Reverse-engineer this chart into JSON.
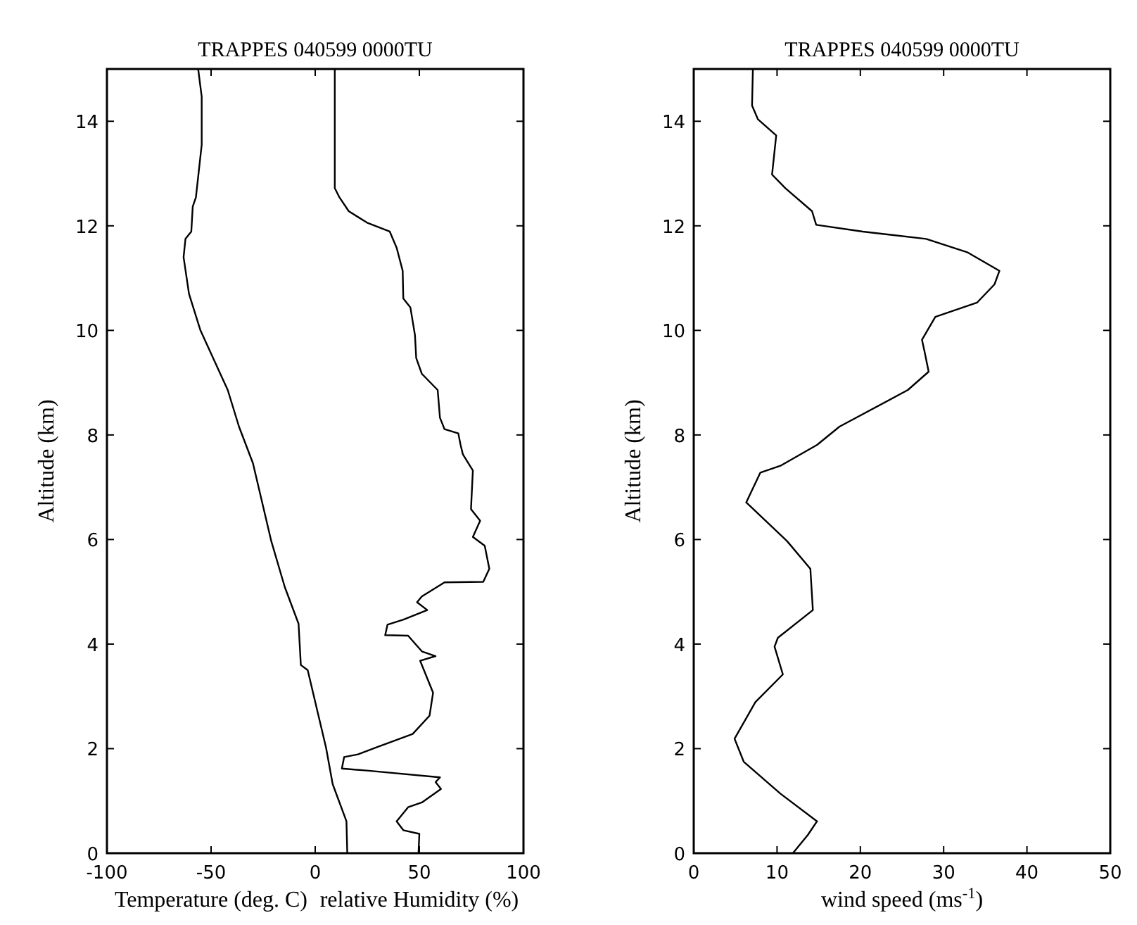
{
  "chart_data": [
    {
      "type": "line",
      "title": "TRAPPES 040599  0000TU",
      "ylabel": "Altitude (km)",
      "xlim": [
        -100,
        100
      ],
      "xticks": [
        -100,
        -50,
        0,
        50,
        100
      ],
      "ylim": [
        0,
        15
      ],
      "yticks": [
        0,
        2,
        4,
        6,
        8,
        10,
        12,
        14
      ],
      "series": [
        {
          "name": "Temperature (deg. C)",
          "color": "#000000",
          "x": [
            -56.2,
            -54.5,
            -54.5,
            -57.3,
            -58.8,
            -59.5,
            -62.3,
            -63.2,
            -60.6,
            -55.1,
            -42,
            -36.6,
            -29.9,
            -21.1,
            -14.6,
            -8,
            -6.9,
            -3.6,
            5.2,
            8.4,
            15,
            15.4
          ],
          "values": [
            15,
            14.47,
            13.55,
            12.54,
            12.37,
            11.89,
            11.75,
            11.4,
            10.7,
            10,
            8.86,
            8.16,
            7.46,
            5.97,
            5.09,
            4.39,
            3.6,
            3.5,
            2.02,
            1.32,
            0.61,
            0
          ]
        },
        {
          "name": "relative Humidity (%)",
          "color": "#000000",
          "x": [
            9.4,
            9.4,
            11.7,
            16.1,
            24.9,
            35.8,
            39.1,
            42,
            42.3,
            45.7,
            47.9,
            48.5,
            51.2,
            58.8,
            59.9,
            62.1,
            68.7,
            69.8,
            70.9,
            75.7,
            74.8,
            79.2,
            75.7,
            81.4,
            83.6,
            80.7,
            62.1,
            51.2,
            48.9,
            53.8,
            42.4,
            34.7,
            33.6,
            44.6,
            51.2,
            57.8,
            50.4,
            56.6,
            54.9,
            46.8,
            29.2,
            20.5,
            13.9,
            12.8,
            24.9,
            59.9,
            57.8,
            60.4,
            51.2,
            44.6,
            39.1,
            42.3,
            50,
            49.6
          ],
          "values": [
            15,
            12.72,
            12.54,
            12.28,
            12.06,
            11.89,
            11.58,
            11.14,
            10.61,
            10.44,
            9.91,
            9.47,
            9.17,
            8.86,
            8.33,
            8.11,
            8.03,
            7.81,
            7.63,
            7.32,
            6.58,
            6.36,
            6.05,
            5.88,
            5.44,
            5.19,
            5.18,
            4.91,
            4.8,
            4.65,
            4.47,
            4.37,
            4.17,
            4.16,
            3.86,
            3.77,
            3.68,
            3.07,
            2.63,
            2.28,
            2.02,
            1.89,
            1.84,
            1.62,
            1.58,
            1.45,
            1.36,
            1.23,
            0.97,
            0.88,
            0.61,
            0.44,
            0.37,
            0
          ]
        }
      ]
    },
    {
      "type": "line",
      "title": "TRAPPES 040599  0000TU",
      "ylabel": "Altitude (km)",
      "xlabel": "wind speed (ms$^{-1}$)",
      "xlim": [
        0,
        50
      ],
      "xticks": [
        0,
        10,
        20,
        30,
        40,
        50
      ],
      "ylim": [
        0,
        15
      ],
      "yticks": [
        0,
        2,
        4,
        6,
        8,
        10,
        12,
        14
      ],
      "series": [
        {
          "color": "#000000",
          "x": [
            7.1,
            7,
            7.7,
            9.9,
            9.4,
            11,
            14.2,
            14.7,
            20.3,
            27.9,
            32.9,
            36.7,
            36.1,
            34,
            29,
            27.4,
            27.7,
            28.2,
            25.7,
            17.5,
            14.8,
            10.4,
            8,
            6.3,
            11.2,
            14,
            14.3,
            10.1,
            9.7,
            10.7,
            7.4,
            4.9,
            6,
            10.4,
            14.8,
            13.7,
            11.9
          ],
          "values": [
            15,
            14.3,
            14.04,
            13.73,
            12.98,
            12.72,
            12.28,
            12.02,
            11.89,
            11.75,
            11.49,
            11.14,
            10.88,
            10.53,
            10.26,
            9.82,
            9.6,
            9.21,
            8.86,
            8.16,
            7.81,
            7.41,
            7.28,
            6.71,
            5.97,
            5.44,
            4.65,
            4.12,
            3.95,
            3.42,
            2.89,
            2.19,
            1.75,
            1.14,
            0.61,
            0.35,
            0
          ]
        }
      ]
    }
  ]
}
